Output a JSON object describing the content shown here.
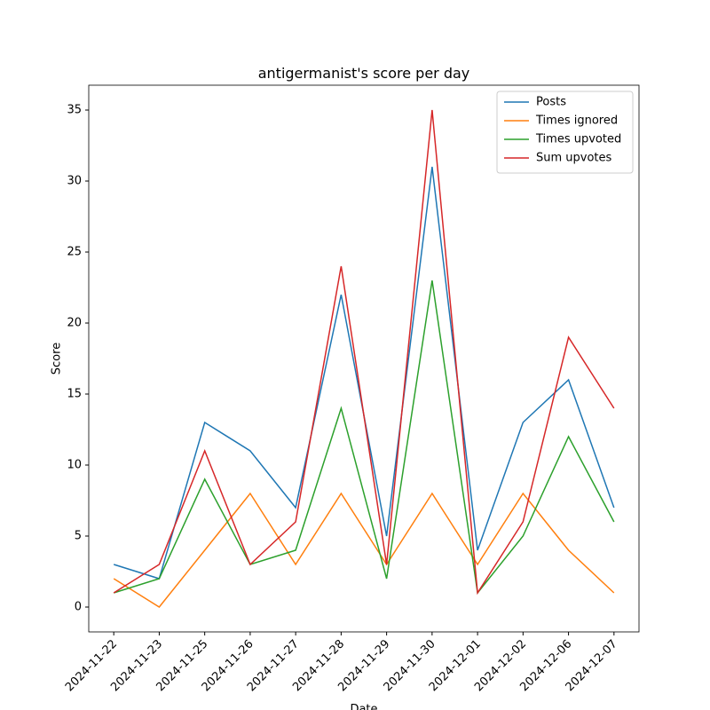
{
  "chart_data": {
    "type": "line",
    "title": "antigermanist's score per day",
    "x_label": "Date",
    "y_label": "Score",
    "categories": [
      "2024-11-22",
      "2024-11-23",
      "2024-11-25",
      "2024-11-26",
      "2024-11-27",
      "2024-11-28",
      "2024-11-29",
      "2024-11-30",
      "2024-12-01",
      "2024-12-02",
      "2024-12-06",
      "2024-12-07"
    ],
    "series": [
      {
        "name": "Posts",
        "color": "#1f77b4",
        "values": [
          3,
          2,
          13,
          11,
          7,
          22,
          5,
          31,
          4,
          13,
          16,
          7
        ]
      },
      {
        "name": "Times ignored",
        "color": "#ff7f0e",
        "values": [
          2,
          0,
          4,
          8,
          3,
          8,
          3,
          8,
          3,
          8,
          4,
          1
        ]
      },
      {
        "name": "Times upvoted",
        "color": "#2ca02c",
        "values": [
          1,
          2,
          9,
          3,
          4,
          14,
          2,
          23,
          1,
          5,
          12,
          6
        ]
      },
      {
        "name": "Sum upvotes",
        "color": "#d62728",
        "values": [
          1,
          3,
          11,
          3,
          6,
          24,
          3,
          35,
          1,
          6,
          19,
          14
        ]
      }
    ],
    "ylim": [
      -1.75,
      36.75
    ],
    "yticks": [
      0,
      5,
      10,
      15,
      20,
      25,
      30,
      35
    ],
    "legend": "upper right",
    "grid": false
  }
}
